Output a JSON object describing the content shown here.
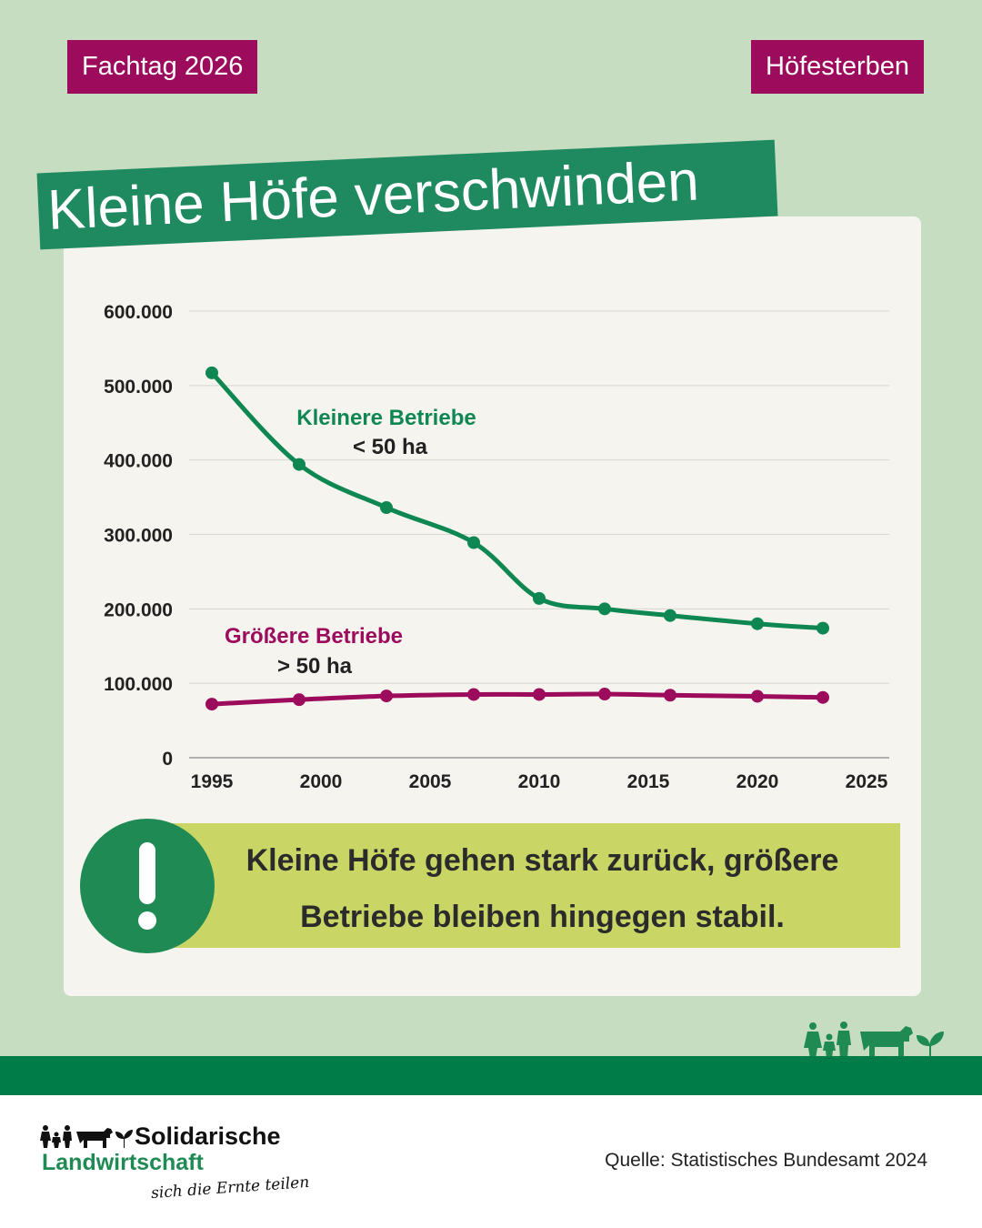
{
  "tags": {
    "left": "Fachtag 2026",
    "right": "Höfesterben"
  },
  "title": "Kleine Höfe verschwinden",
  "callout": {
    "line1": "Kleine Höfe gehen stark zurück, größere",
    "line2": "Betriebe bleiben hingegen stabil."
  },
  "source": "Quelle: Statistisches Bundesamt 2024",
  "logo": {
    "line1": "Solidarische",
    "line2": "Landwirtschaft",
    "line3": "sich die Ernte teilen"
  },
  "colors": {
    "background": "#c6ddc1",
    "tag": "#9c0b5c",
    "banner": "#1f8a60",
    "small_series": "#0f8753",
    "large_series": "#9c0b5c",
    "callout": "#c9d666",
    "footer_band": "#007c49"
  },
  "icons": [
    "exclamation-icon",
    "family-icon",
    "cow-icon",
    "sprout-icon"
  ],
  "chart_data": {
    "type": "line",
    "xlim": [
      1995,
      2025
    ],
    "ylim": [
      0,
      600000
    ],
    "x_ticks": [
      1995,
      2000,
      2005,
      2010,
      2015,
      2020,
      2025
    ],
    "x_tick_labels": [
      "1995",
      "2000",
      "2005",
      "2010",
      "2015",
      "2020",
      "2025"
    ],
    "y_ticks": [
      0,
      100000,
      200000,
      300000,
      400000,
      500000,
      600000
    ],
    "y_tick_labels": [
      "0",
      "100.000",
      "200.000",
      "300.000",
      "400.000",
      "500.000",
      "600.000"
    ],
    "grid": true,
    "series": [
      {
        "name": "Kleinere Betriebe",
        "sublabel": "< 50 ha",
        "color": "#0f8753",
        "x": [
          1995,
          1999,
          2003,
          2007,
          2010,
          2013,
          2016,
          2020,
          2023
        ],
        "y": [
          517000,
          394000,
          336000,
          289000,
          214000,
          200000,
          191000,
          180000,
          174000
        ]
      },
      {
        "name": "Größere Betriebe",
        "sublabel": "> 50 ha",
        "color": "#9c0b5c",
        "x": [
          1995,
          1999,
          2003,
          2007,
          2010,
          2013,
          2016,
          2020,
          2023
        ],
        "y": [
          72000,
          78000,
          83000,
          85000,
          85000,
          85500,
          84000,
          82500,
          81000
        ]
      }
    ]
  }
}
